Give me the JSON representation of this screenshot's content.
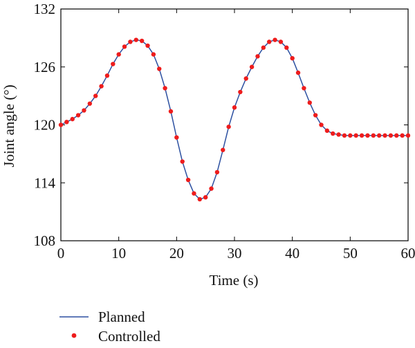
{
  "chart_data": {
    "type": "line",
    "xlabel": "Time (s)",
    "ylabel": "Joint angle (°)",
    "xlim": [
      0,
      60
    ],
    "ylim": [
      108,
      132
    ],
    "xticks": [
      0,
      10,
      20,
      30,
      40,
      50,
      60
    ],
    "yticks": [
      108,
      114,
      120,
      126,
      132
    ],
    "grid": false,
    "legend_position": "bottom-left, below plot",
    "series": [
      {
        "name": "Planned",
        "style": "line",
        "color": "#2b4fa0",
        "x": [
          0,
          1,
          2,
          3,
          4,
          5,
          6,
          7,
          8,
          9,
          10,
          11,
          12,
          13,
          14,
          15,
          16,
          17,
          18,
          19,
          20,
          21,
          22,
          23,
          24,
          25,
          26,
          27,
          28,
          29,
          30,
          31,
          32,
          33,
          34,
          35,
          36,
          37,
          38,
          39,
          40,
          41,
          42,
          43,
          44,
          45,
          46,
          47,
          48,
          49,
          50,
          51,
          52,
          53,
          54,
          55,
          56,
          57,
          58,
          59,
          60
        ],
        "y": [
          120.0,
          120.3,
          120.6,
          121.0,
          121.5,
          122.2,
          123.0,
          124.0,
          125.1,
          126.3,
          127.3,
          128.1,
          128.6,
          128.8,
          128.7,
          128.2,
          127.3,
          125.8,
          123.8,
          121.4,
          118.7,
          116.2,
          114.3,
          112.9,
          112.3,
          112.5,
          113.4,
          115.1,
          117.4,
          119.8,
          121.8,
          123.4,
          124.8,
          126.0,
          127.1,
          128.0,
          128.6,
          128.8,
          128.6,
          128.0,
          126.9,
          125.4,
          123.8,
          122.3,
          121.0,
          120.0,
          119.4,
          119.1,
          119.0,
          118.9,
          118.9,
          118.9,
          118.9,
          118.9,
          118.9,
          118.9,
          118.9,
          118.9,
          118.9,
          118.9,
          118.9
        ]
      },
      {
        "name": "Controlled",
        "style": "points",
        "color": "#ee1c1c",
        "x": [
          0,
          1,
          2,
          3,
          4,
          5,
          6,
          7,
          8,
          9,
          10,
          11,
          12,
          13,
          14,
          15,
          16,
          17,
          18,
          19,
          20,
          21,
          22,
          23,
          24,
          25,
          26,
          27,
          28,
          29,
          30,
          31,
          32,
          33,
          34,
          35,
          36,
          37,
          38,
          39,
          40,
          41,
          42,
          43,
          44,
          45,
          46,
          47,
          48,
          49,
          50,
          51,
          52,
          53,
          54,
          55,
          56,
          57,
          58,
          59,
          60
        ],
        "y": [
          120.0,
          120.3,
          120.6,
          121.0,
          121.5,
          122.2,
          123.0,
          124.0,
          125.1,
          126.3,
          127.3,
          128.1,
          128.6,
          128.8,
          128.7,
          128.2,
          127.3,
          125.8,
          123.8,
          121.4,
          118.7,
          116.2,
          114.3,
          112.9,
          112.3,
          112.5,
          113.4,
          115.1,
          117.4,
          119.8,
          121.8,
          123.4,
          124.8,
          126.0,
          127.1,
          128.0,
          128.6,
          128.8,
          128.6,
          128.0,
          126.9,
          125.4,
          123.8,
          122.3,
          121.0,
          120.0,
          119.4,
          119.1,
          119.0,
          118.9,
          118.9,
          118.9,
          118.9,
          118.9,
          118.9,
          118.9,
          118.9,
          118.9,
          118.9,
          118.9,
          118.9
        ]
      }
    ]
  }
}
